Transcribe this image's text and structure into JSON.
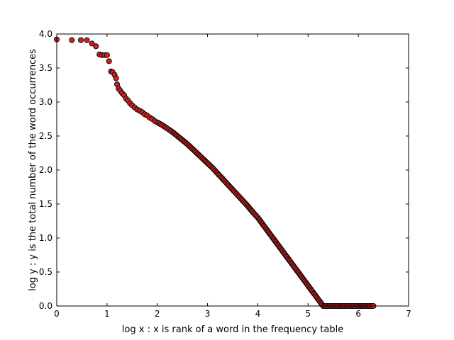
{
  "chart_data": {
    "type": "scatter",
    "title": "",
    "xlabel": "log x : x is rank of a word in the frequency table",
    "ylabel": "log y : y  is the total number of the word occurrences",
    "xlim": [
      0,
      7
    ],
    "ylim": [
      0,
      4.0
    ],
    "x_ticks": [
      "0",
      "1",
      "2",
      "3",
      "4",
      "5",
      "6",
      "7"
    ],
    "y_ticks": [
      "0.0",
      "0.5",
      "1.0",
      "1.5",
      "2.0",
      "2.5",
      "3.0",
      "3.5",
      "4.0"
    ],
    "grid": false,
    "legend": "none",
    "marker": {
      "fill": "#cc2222",
      "edge": "#000000"
    },
    "series": [
      {
        "points": [
          [
            0.0,
            3.92
          ],
          [
            0.3,
            3.91
          ],
          [
            0.48,
            3.91
          ],
          [
            0.6,
            3.91
          ],
          [
            0.7,
            3.86
          ],
          [
            0.78,
            3.82
          ],
          [
            0.85,
            3.7
          ],
          [
            0.9,
            3.69
          ],
          [
            0.95,
            3.69
          ],
          [
            1.0,
            3.69
          ],
          [
            1.04,
            3.6
          ],
          [
            1.08,
            3.45
          ],
          [
            1.11,
            3.44
          ],
          [
            1.15,
            3.4
          ],
          [
            1.18,
            3.35
          ],
          [
            1.2,
            3.26
          ],
          [
            1.23,
            3.2
          ],
          [
            1.26,
            3.17
          ],
          [
            1.3,
            3.13
          ],
          [
            1.34,
            3.1
          ],
          [
            1.38,
            3.05
          ],
          [
            1.42,
            3.02
          ],
          [
            1.46,
            2.98
          ],
          [
            1.5,
            2.95
          ],
          [
            1.55,
            2.92
          ],
          [
            1.6,
            2.89
          ],
          [
            1.65,
            2.87
          ],
          [
            1.7,
            2.85
          ],
          [
            1.75,
            2.82
          ],
          [
            1.8,
            2.8
          ],
          [
            1.85,
            2.77
          ],
          [
            1.9,
            2.75
          ],
          [
            1.95,
            2.72
          ],
          [
            2.0,
            2.7
          ],
          [
            2.1,
            2.66
          ],
          [
            2.2,
            2.61
          ],
          [
            2.3,
            2.56
          ],
          [
            2.4,
            2.5
          ],
          [
            2.5,
            2.44
          ],
          [
            2.6,
            2.38
          ],
          [
            2.7,
            2.31
          ],
          [
            2.8,
            2.24
          ],
          [
            2.9,
            2.17
          ],
          [
            3.0,
            2.1
          ],
          [
            3.1,
            2.03
          ],
          [
            3.2,
            1.95
          ],
          [
            3.3,
            1.87
          ],
          [
            3.4,
            1.79
          ],
          [
            3.5,
            1.71
          ],
          [
            3.6,
            1.63
          ],
          [
            3.7,
            1.55
          ],
          [
            3.8,
            1.47
          ],
          [
            3.9,
            1.38
          ],
          [
            4.0,
            1.3
          ],
          [
            4.1,
            1.2
          ],
          [
            4.2,
            1.1
          ],
          [
            4.3,
            1.0
          ],
          [
            4.4,
            0.9
          ],
          [
            4.5,
            0.8
          ],
          [
            4.6,
            0.7
          ],
          [
            4.7,
            0.6
          ],
          [
            4.8,
            0.5
          ],
          [
            4.9,
            0.4
          ],
          [
            5.0,
            0.3
          ],
          [
            5.1,
            0.2
          ],
          [
            5.2,
            0.1
          ],
          [
            5.3,
            0.0
          ],
          [
            5.7,
            0.0
          ],
          [
            6.0,
            0.0
          ],
          [
            6.3,
            0.0
          ]
        ]
      }
    ]
  }
}
